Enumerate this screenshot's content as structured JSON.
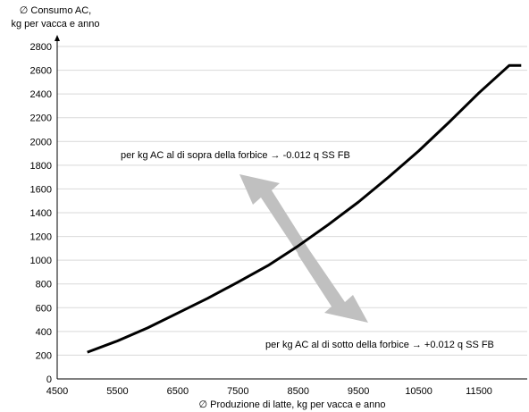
{
  "chart_data": {
    "type": "line",
    "title": "",
    "ylabel_line1": "∅ Consumo AC,",
    "ylabel_line2": "kg per vacca e anno",
    "xlabel": "∅ Produzione di latte, kg per vacca e anno",
    "xlim": [
      4500,
      12300
    ],
    "ylim": [
      0,
      2800
    ],
    "x_ticks": [
      "4500",
      "5500",
      "6500",
      "7500",
      "8500",
      "9500",
      "10500",
      "11500"
    ],
    "y_ticks": [
      "0",
      "200",
      "400",
      "600",
      "800",
      "1000",
      "1200",
      "1400",
      "1600",
      "1800",
      "2000",
      "2200",
      "2400",
      "2600",
      "2800"
    ],
    "grid": "horizontal",
    "legend": "none",
    "series": [
      {
        "x": [
          5000,
          5500,
          6000,
          6500,
          7000,
          7500,
          8000,
          8500,
          9000,
          9500,
          10000,
          10500,
          11000,
          11500,
          12000,
          12200
        ],
        "y": [
          225,
          320,
          430,
          555,
          680,
          815,
          955,
          1120,
          1300,
          1490,
          1700,
          1920,
          2160,
          2410,
          2640,
          2640
        ]
      }
    ],
    "annotations": {
      "above": "per kg AC al di sopra della forbice → -0.012 q SS FB",
      "below": "per kg AC al di sotto della forbice → +0.012 q SS FB"
    },
    "colors": {
      "line": "#000000",
      "arrow": "#c0c0c0",
      "grid": "#d9d9d9"
    }
  }
}
